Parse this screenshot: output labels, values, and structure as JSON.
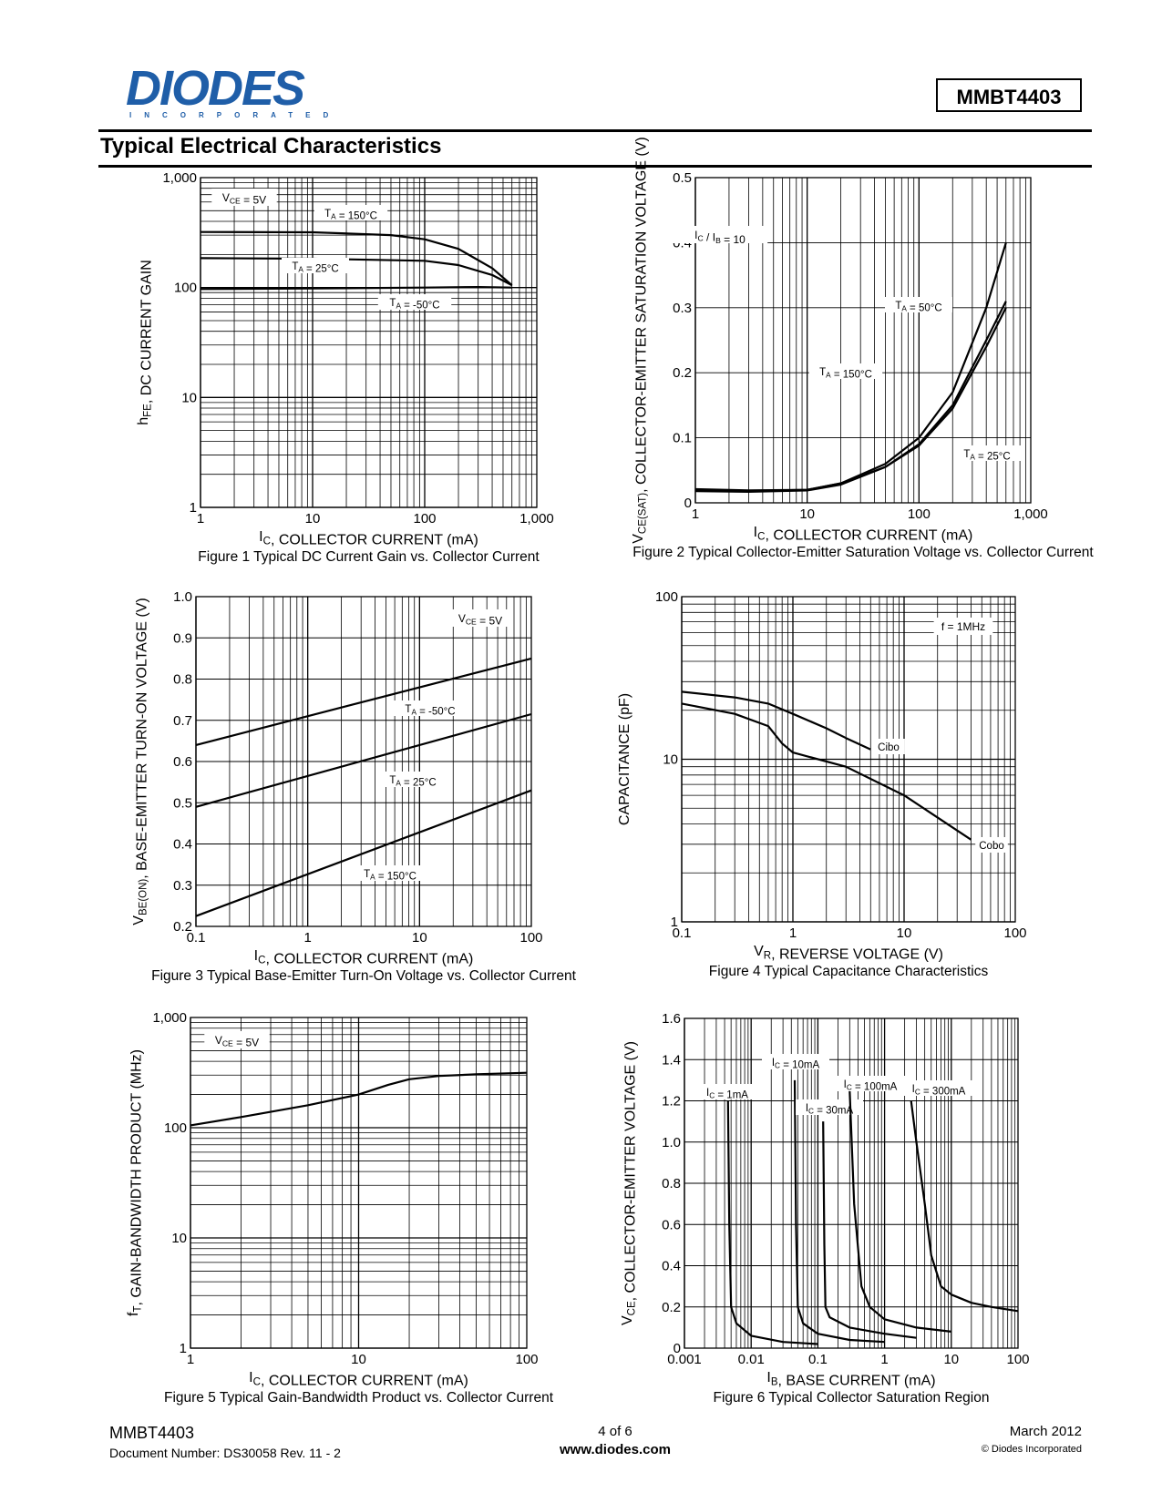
{
  "header": {
    "logo_text": "DIODES",
    "logo_subtext": "INCORPORATED",
    "part_number": "MMBT4403",
    "section_title": "Typical Electrical Characteristics"
  },
  "footer": {
    "part": "MMBT4403",
    "doc_number": "Document Number:  DS30058 Rev. 11 - 2",
    "page": "4 of 6",
    "url": "www.diodes.com",
    "date": "March 2012",
    "copyright": "© Diodes Incorporated"
  },
  "colors": {
    "brand": "#1f5ea8",
    "ink": "#000000"
  },
  "chart_data": [
    {
      "type": "line",
      "log_x": true,
      "log_y": true,
      "xlim": [
        1,
        1000
      ],
      "ylim": [
        1,
        1000
      ],
      "xticks": [
        1,
        10,
        100,
        1000
      ],
      "xtick_labels": [
        "1",
        "10",
        "100",
        "1,000"
      ],
      "yticks": [
        1,
        10,
        100,
        1000
      ],
      "ytick_labels": [
        "1",
        "10",
        "100",
        "1,000"
      ],
      "xlabel": "I_C, COLLECTOR CURRENT (mA)",
      "ylabel": "h_FE, DC CURRENT GAIN",
      "caption": "Figure 1 Typical DC Current Gain vs. Collector Current",
      "annotations": [
        "V_CE = 5V"
      ],
      "series": [
        {
          "name": "T_A = 150°C",
          "x": [
            1,
            10,
            50,
            100,
            200,
            400,
            600
          ],
          "y": [
            320,
            318,
            300,
            275,
            225,
            150,
            105
          ]
        },
        {
          "name": "T_A = 25°C",
          "x": [
            1,
            10,
            100,
            200,
            400,
            600
          ],
          "y": [
            185,
            183,
            175,
            160,
            130,
            105
          ]
        },
        {
          "name": "T_A = -50°C",
          "x": [
            1,
            10,
            100,
            300,
            600
          ],
          "y": [
            97,
            98,
            100,
            101,
            100
          ]
        }
      ]
    },
    {
      "type": "line",
      "log_x": true,
      "log_y": false,
      "xlim": [
        1,
        1000
      ],
      "ylim": [
        0,
        0.5
      ],
      "xticks": [
        1,
        10,
        100,
        1000
      ],
      "xtick_labels": [
        "1",
        "10",
        "100",
        "1,000"
      ],
      "yticks": [
        0,
        0.1,
        0.2,
        0.3,
        0.4,
        0.5
      ],
      "ytick_labels": [
        "0",
        "0.1",
        "0.2",
        "0.3",
        "0.4",
        "0.5"
      ],
      "xlabel": "I_C, COLLECTOR CURRENT (mA)",
      "ylabel": "V_CE(SAT), COLLECTOR-EMITTER SATURATION VOLTAGE (V)",
      "caption": "Figure 2 Typical Collector-Emitter Saturation Voltage vs. Collector Current",
      "annotations": [
        "I_C / I_B = 10"
      ],
      "series": [
        {
          "name": "T_A = 50°C",
          "x": [
            1,
            3,
            10,
            20,
            50,
            100,
            200,
            400,
            600
          ],
          "y": [
            0.02,
            0.018,
            0.02,
            0.03,
            0.06,
            0.1,
            0.17,
            0.3,
            0.4
          ]
        },
        {
          "name": "T_A = 150°C",
          "x": [
            1,
            3,
            10,
            20,
            50,
            100,
            200,
            400,
            600
          ],
          "y": [
            0.018,
            0.017,
            0.019,
            0.028,
            0.055,
            0.09,
            0.15,
            0.25,
            0.31
          ]
        },
        {
          "name": "T_A = 25°C",
          "x": [
            1,
            3,
            10,
            20,
            50,
            100,
            200,
            400,
            600
          ],
          "y": [
            0.021,
            0.019,
            0.02,
            0.03,
            0.055,
            0.088,
            0.145,
            0.24,
            0.3
          ]
        }
      ]
    },
    {
      "type": "line",
      "log_x": true,
      "log_y": false,
      "xlim": [
        0.1,
        100
      ],
      "ylim": [
        0.2,
        1.0
      ],
      "xticks": [
        0.1,
        1,
        10,
        100
      ],
      "xtick_labels": [
        "0.1",
        "1",
        "10",
        "100"
      ],
      "yticks": [
        0.2,
        0.3,
        0.4,
        0.5,
        0.6,
        0.7,
        0.8,
        0.9,
        1.0
      ],
      "ytick_labels": [
        "0.2",
        "0.3",
        "0.4",
        "0.5",
        "0.6",
        "0.7",
        "0.8",
        "0.9",
        "1.0"
      ],
      "xlabel": "I_C, COLLECTOR CURRENT (mA)",
      "ylabel": "V_BE(ON), BASE-EMITTER TURN-ON VOLTAGE (V)",
      "caption": "Figure 3 Typical Base-Emitter Turn-On Voltage vs. Collector Current",
      "annotations": [
        "V_CE = 5V"
      ],
      "series": [
        {
          "name": "T_A = -50°C",
          "x": [
            0.1,
            100
          ],
          "y": [
            0.64,
            0.85
          ]
        },
        {
          "name": "T_A = 25°C",
          "x": [
            0.1,
            100
          ],
          "y": [
            0.49,
            0.715
          ]
        },
        {
          "name": "T_A = 150°C",
          "x": [
            0.1,
            100
          ],
          "y": [
            0.225,
            0.53
          ]
        }
      ]
    },
    {
      "type": "line",
      "log_x": true,
      "log_y": true,
      "xlim": [
        0.1,
        100
      ],
      "ylim": [
        1,
        100
      ],
      "xticks": [
        0.1,
        1,
        10,
        100
      ],
      "xtick_labels": [
        "0.1",
        "1",
        "10",
        "100"
      ],
      "yticks": [
        1,
        10,
        100
      ],
      "ytick_labels": [
        "1",
        "10",
        "100"
      ],
      "xlabel": "V_R, REVERSE VOLTAGE (V)",
      "ylabel": "CAPACITANCE (pF)",
      "caption": "Figure 4 Typical Capacitance Characteristics",
      "annotations": [
        "f = 1MHz"
      ],
      "series": [
        {
          "name": "Cibo",
          "x": [
            0.1,
            0.3,
            0.6,
            1,
            2,
            3,
            5
          ],
          "y": [
            26,
            24,
            22,
            19,
            15.5,
            13.5,
            11.5
          ]
        },
        {
          "name": "Cobo",
          "x": [
            0.1,
            0.3,
            0.6,
            0.8,
            1,
            3,
            10,
            40
          ],
          "y": [
            22,
            19,
            16,
            12.5,
            11,
            9,
            6,
            3.2
          ]
        }
      ]
    },
    {
      "type": "line",
      "log_x": true,
      "log_y": true,
      "xlim": [
        1,
        100
      ],
      "ylim": [
        1,
        1000
      ],
      "xticks": [
        1,
        10,
        100
      ],
      "xtick_labels": [
        "1",
        "10",
        "100"
      ],
      "yticks": [
        1,
        10,
        100,
        1000
      ],
      "ytick_labels": [
        "1",
        "10",
        "100",
        "1,000"
      ],
      "xlabel": "I_C, COLLECTOR CURRENT (mA)",
      "ylabel": "f_T, GAIN-BANDWIDTH PRODUCT (MHz)",
      "caption": "Figure 5 Typical Gain-Bandwidth Product vs. Collector Current",
      "annotations": [
        "V_CE = 5V"
      ],
      "series": [
        {
          "name": "",
          "x": [
            1,
            2,
            5,
            10,
            15,
            20,
            30,
            50,
            100
          ],
          "y": [
            105,
            125,
            160,
            200,
            245,
            275,
            295,
            305,
            315
          ]
        }
      ]
    },
    {
      "type": "line",
      "log_x": true,
      "log_y": false,
      "xlim": [
        0.001,
        100
      ],
      "ylim": [
        0,
        1.6
      ],
      "xticks": [
        0.001,
        0.01,
        0.1,
        1,
        10,
        100
      ],
      "xtick_labels": [
        "0.001",
        "0.01",
        "0.1",
        "1",
        "10",
        "100"
      ],
      "yticks": [
        0,
        0.2,
        0.4,
        0.6,
        0.8,
        1.0,
        1.2,
        1.4,
        1.6
      ],
      "ytick_labels": [
        "0",
        "0.2",
        "0.4",
        "0.6",
        "0.8",
        "1.0",
        "1.2",
        "1.4",
        "1.6"
      ],
      "xlabel": "I_B, BASE CURRENT (mA)",
      "ylabel": "V_CE, COLLECTOR-EMITTER VOLTAGE (V)",
      "caption": "Figure 6 Typical Collector Saturation Region",
      "series": [
        {
          "name": "I_C = 1mA",
          "x": [
            0.0045,
            0.0047,
            0.005,
            0.006,
            0.01,
            0.03,
            0.1
          ],
          "y": [
            1.2,
            0.6,
            0.2,
            0.12,
            0.06,
            0.03,
            0.02
          ]
        },
        {
          "name": "I_C = 10mA",
          "x": [
            0.045,
            0.047,
            0.05,
            0.06,
            0.1,
            0.3,
            1
          ],
          "y": [
            1.3,
            0.6,
            0.2,
            0.12,
            0.07,
            0.04,
            0.03
          ]
        },
        {
          "name": "I_C = 30mA",
          "x": [
            0.12,
            0.125,
            0.13,
            0.15,
            0.3,
            1,
            3
          ],
          "y": [
            1.1,
            0.5,
            0.2,
            0.15,
            0.1,
            0.07,
            0.05
          ]
        },
        {
          "name": "I_C = 100mA",
          "x": [
            0.3,
            0.35,
            0.45,
            0.6,
            1,
            3,
            10
          ],
          "y": [
            1.25,
            0.7,
            0.3,
            0.2,
            0.14,
            0.1,
            0.08
          ]
        },
        {
          "name": "I_C = 300mA",
          "x": [
            2.5,
            3,
            4,
            5,
            7,
            10,
            20,
            40,
            100
          ],
          "y": [
            1.2,
            1.0,
            0.7,
            0.45,
            0.3,
            0.26,
            0.22,
            0.2,
            0.18
          ]
        }
      ]
    }
  ]
}
